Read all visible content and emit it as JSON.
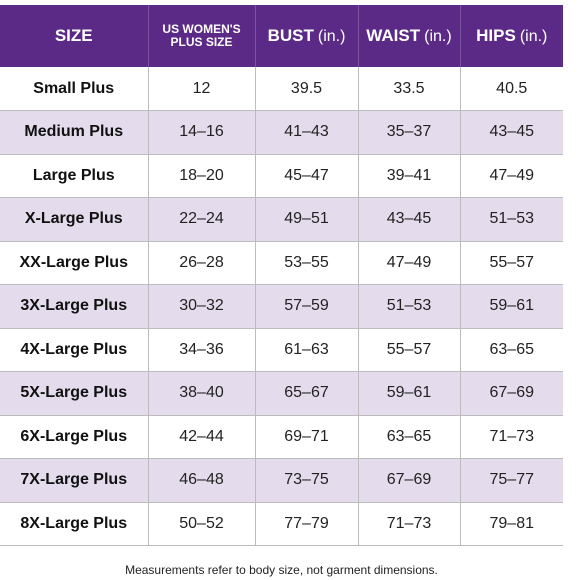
{
  "headers": {
    "size": "SIZE",
    "us_line1": "US WOMEN'S",
    "us_line2": "PLUS SIZE",
    "bust": "BUST",
    "waist": "WAIST",
    "hips": "HIPS",
    "unit": "(in.)"
  },
  "rows": [
    {
      "size": "Small Plus",
      "us": "12",
      "bust": "39.5",
      "waist": "33.5",
      "hips": "40.5"
    },
    {
      "size": "Medium Plus",
      "us": "14–16",
      "bust": "41–43",
      "waist": "35–37",
      "hips": "43–45"
    },
    {
      "size": "Large Plus",
      "us": "18–20",
      "bust": "45–47",
      "waist": "39–41",
      "hips": "47–49"
    },
    {
      "size": "X-Large Plus",
      "us": "22–24",
      "bust": "49–51",
      "waist": "43–45",
      "hips": "51–53"
    },
    {
      "size": "XX-Large Plus",
      "us": "26–28",
      "bust": "53–55",
      "waist": "47–49",
      "hips": "55–57"
    },
    {
      "size": "3X-Large Plus",
      "us": "30–32",
      "bust": "57–59",
      "waist": "51–53",
      "hips": "59–61"
    },
    {
      "size": "4X-Large Plus",
      "us": "34–36",
      "bust": "61–63",
      "waist": "55–57",
      "hips": "63–65"
    },
    {
      "size": "5X-Large Plus",
      "us": "38–40",
      "bust": "65–67",
      "waist": "59–61",
      "hips": "67–69"
    },
    {
      "size": "6X-Large Plus",
      "us": "42–44",
      "bust": "69–71",
      "waist": "63–65",
      "hips": "71–73"
    },
    {
      "size": "7X-Large Plus",
      "us": "46–48",
      "bust": "73–75",
      "waist": "67–69",
      "hips": "75–77"
    },
    {
      "size": "8X-Large Plus",
      "us": "50–52",
      "bust": "77–79",
      "waist": "71–73",
      "hips": "79–81"
    }
  ],
  "footnote": "Measurements refer to body size, not garment dimensions.",
  "colors": {
    "header_bg": "#5b2a86",
    "stripe_bg": "#e4dcec"
  }
}
